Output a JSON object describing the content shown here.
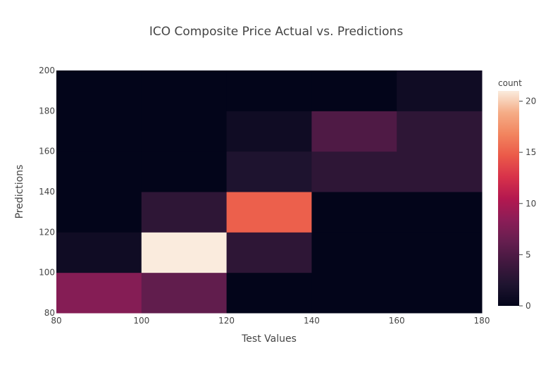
{
  "chart_data": {
    "type": "heatmap",
    "title": "ICO Composite Price Actual vs. Predictions",
    "xlabel": "Test Values",
    "ylabel": "Predictions",
    "x_bins": [
      [
        80,
        100
      ],
      [
        100,
        120
      ],
      [
        120,
        140
      ],
      [
        140,
        160
      ],
      [
        160,
        180
      ]
    ],
    "y_bins": [
      [
        80,
        100
      ],
      [
        100,
        120
      ],
      [
        120,
        140
      ],
      [
        140,
        160
      ],
      [
        160,
        180
      ],
      [
        180,
        200
      ]
    ],
    "xlim": [
      80,
      180
    ],
    "ylim": [
      80,
      200
    ],
    "x_ticks": [
      "80",
      "100",
      "120",
      "140",
      "160",
      "180"
    ],
    "y_ticks": [
      "80",
      "100",
      "120",
      "140",
      "160",
      "180",
      "200"
    ],
    "counts": [
      [
        8,
        6,
        0,
        0,
        0
      ],
      [
        1,
        21,
        3,
        0,
        0
      ],
      [
        0,
        3,
        15,
        0,
        0
      ],
      [
        0,
        0,
        2,
        3,
        3
      ],
      [
        0,
        0,
        1,
        5,
        3
      ],
      [
        0,
        0,
        0,
        0,
        1
      ]
    ],
    "colorbar": {
      "title": "count",
      "range": [
        0,
        21
      ],
      "ticks": [
        "0",
        "5",
        "10",
        "15",
        "20"
      ],
      "colorscale": [
        "#0d0887",
        "#000000"
      ],
      "stops": [
        [
          0.0,
          "#03051a"
        ],
        [
          0.1,
          "#1f1430"
        ],
        [
          0.2,
          "#41183f"
        ],
        [
          0.3,
          "#661e4f"
        ],
        [
          0.4,
          "#8c1d57"
        ],
        [
          0.5,
          "#b4184f"
        ],
        [
          0.6,
          "#d8324a"
        ],
        [
          0.7,
          "#eb5a49"
        ],
        [
          0.8,
          "#f2855f"
        ],
        [
          0.9,
          "#f5ad87"
        ],
        [
          1.0,
          "#faebdd"
        ]
      ]
    }
  }
}
